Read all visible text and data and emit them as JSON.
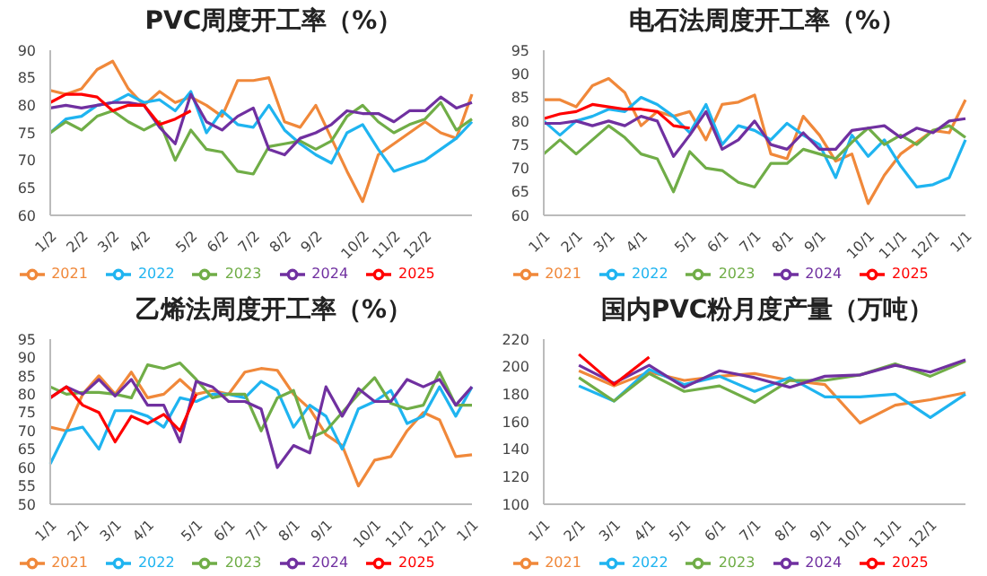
{
  "chart_data": [
    {
      "type": "line",
      "title": "PVC周度开工率（%）",
      "legend": "bottom",
      "categories": [
        "1/2",
        null,
        "2/2",
        null,
        "3/2",
        null,
        "4/2",
        null,
        null,
        "5/2",
        null,
        "6/2",
        null,
        "7/2",
        null,
        "8/2",
        null,
        "9/2",
        null,
        null,
        "10/2",
        null,
        "11/2",
        null,
        "12/2",
        null,
        null,
        null
      ],
      "ylim": [
        60,
        90
      ],
      "yticks": [
        60,
        65,
        70,
        75,
        80,
        85,
        90
      ],
      "series": [
        {
          "name": "2021",
          "color": "#f0883a",
          "values": [
            82.7,
            82,
            83,
            86.5,
            88,
            83,
            80,
            82.5,
            80.5,
            81.5,
            80,
            78,
            84.5,
            84.5,
            85,
            77,
            76,
            80,
            74,
            68,
            62.5,
            71,
            73,
            75,
            77,
            75,
            74,
            82
          ]
        },
        {
          "name": "2022",
          "color": "#1fb4f0",
          "values": [
            75,
            77.5,
            78,
            80,
            80.5,
            82,
            80.5,
            81,
            79,
            82.5,
            75,
            79,
            76.5,
            76,
            80,
            75.5,
            73,
            71,
            69.5,
            75,
            76.5,
            72,
            68,
            69,
            70,
            72,
            74,
            77
          ]
        },
        {
          "name": "2023",
          "color": "#70ad47",
          "values": [
            75,
            77,
            75.5,
            78,
            79,
            77,
            75.5,
            77,
            70,
            75.5,
            72,
            71.5,
            68,
            67.5,
            72.5,
            73,
            73.5,
            72,
            73.5,
            78,
            80,
            77,
            75,
            76.5,
            77.5,
            80.5,
            75.5,
            77.5
          ]
        },
        {
          "name": "2024",
          "color": "#7030a0",
          "values": [
            79.5,
            80,
            79.5,
            80,
            80.5,
            80.5,
            80,
            76,
            73,
            82,
            77,
            75.5,
            78,
            79.5,
            72,
            71,
            74,
            75,
            76.5,
            79,
            78.5,
            78.5,
            77,
            79,
            79,
            81.5,
            79.5,
            80.5
          ]
        },
        {
          "name": "2025",
          "color": "#ff0000",
          "values": [
            80.5,
            82,
            82,
            81.5,
            79,
            80,
            80,
            76.5,
            77.5,
            79,
            null,
            null,
            null,
            null,
            null,
            null,
            null,
            null,
            null,
            null,
            null,
            null,
            null,
            null,
            null,
            null,
            null,
            null
          ]
        }
      ]
    },
    {
      "type": "line",
      "title": "电石法周度开工率（%）",
      "legend": "bottom",
      "categories": [
        "1/1",
        null,
        "2/1",
        null,
        "3/1",
        null,
        "4/1",
        null,
        null,
        "5/1",
        null,
        "6/1",
        null,
        "7/1",
        null,
        "8/1",
        null,
        "9/1",
        null,
        null,
        "10/1",
        null,
        "11/1",
        null,
        "12/1",
        null,
        "1/1"
      ],
      "ylim": [
        60,
        95
      ],
      "yticks": [
        60,
        65,
        70,
        75,
        80,
        85,
        90,
        95
      ],
      "series": [
        {
          "name": "2021",
          "color": "#f0883a",
          "values": [
            84.5,
            84.5,
            83,
            87.5,
            89,
            86,
            79,
            82,
            81,
            82,
            76,
            83.5,
            84,
            85.5,
            73,
            72,
            81,
            77,
            71.5,
            73,
            62.5,
            68.5,
            73,
            75.5,
            78,
            77.5,
            84.5
          ]
        },
        {
          "name": "2022",
          "color": "#1fb4f0",
          "values": [
            80,
            77,
            80,
            81,
            82.5,
            82,
            85,
            83.5,
            81,
            77.5,
            83.5,
            75,
            79,
            78,
            76,
            79.5,
            77,
            75,
            68,
            77,
            72.5,
            76,
            70.5,
            66,
            66.5,
            68,
            76
          ]
        },
        {
          "name": "2023",
          "color": "#70ad47",
          "values": [
            73,
            76,
            73,
            76,
            79,
            76.5,
            73,
            72,
            65,
            73.5,
            70,
            69.5,
            67,
            66,
            71,
            71,
            74,
            73,
            72,
            75.5,
            78.5,
            75,
            77,
            75,
            78,
            79,
            76.5
          ]
        },
        {
          "name": "2024",
          "color": "#7030a0",
          "values": [
            79.5,
            79.5,
            80,
            79,
            80,
            79,
            81,
            80,
            72.5,
            77,
            82,
            74,
            76,
            80,
            75,
            74,
            77.5,
            74,
            74,
            78,
            78.5,
            79,
            76.5,
            78.5,
            77.5,
            80,
            80.5
          ]
        },
        {
          "name": "2025",
          "color": "#ff0000",
          "values": [
            80.5,
            81.5,
            82,
            83.5,
            83,
            82.5,
            82.5,
            82,
            79,
            78.5,
            null,
            null,
            null,
            null,
            null,
            null,
            null,
            null,
            null,
            null,
            null,
            null,
            null,
            null,
            null,
            null,
            null
          ]
        }
      ]
    },
    {
      "type": "line",
      "title": "乙烯法周度开工率（%）",
      "legend": "bottom",
      "categories": [
        "1/1",
        null,
        "2/1",
        null,
        "3/1",
        null,
        "4/1",
        null,
        null,
        "5/1",
        null,
        "6/1",
        null,
        "7/1",
        null,
        "8/1",
        null,
        "9/1",
        null,
        null,
        "10/1",
        null,
        "11/1",
        null,
        "12/1",
        null,
        "1/1"
      ],
      "ylim": [
        50,
        95
      ],
      "yticks": [
        50,
        55,
        60,
        65,
        70,
        75,
        80,
        85,
        90,
        95
      ],
      "series": [
        {
          "name": "2021",
          "color": "#f0883a",
          "values": [
            71,
            70,
            80,
            85,
            80,
            86,
            79,
            80,
            84,
            80,
            81,
            80,
            86,
            87,
            86.5,
            80,
            76,
            69,
            66,
            55,
            62,
            63,
            70,
            75,
            73,
            63,
            63.5
          ]
        },
        {
          "name": "2022",
          "color": "#1fb4f0",
          "values": [
            61,
            70,
            71,
            65,
            75.5,
            75.5,
            74,
            71,
            79,
            78,
            80,
            80,
            79,
            83.5,
            81,
            71,
            77,
            74,
            65,
            76,
            78,
            81,
            72,
            74,
            82,
            74,
            82
          ]
        },
        {
          "name": "2023",
          "color": "#70ad47",
          "values": [
            82,
            80,
            80.5,
            80.5,
            80,
            79,
            88,
            87,
            88.5,
            84,
            79,
            80,
            80,
            70,
            79,
            81,
            68,
            70,
            75,
            80,
            84.5,
            77.5,
            76,
            77,
            86,
            77,
            77
          ]
        },
        {
          "name": "2024",
          "color": "#7030a0",
          "values": [
            79,
            82,
            80,
            84,
            79.5,
            84,
            77,
            77,
            67,
            83.5,
            82,
            78,
            78,
            76,
            60,
            66,
            64,
            82,
            74,
            81.5,
            78,
            78,
            84,
            82,
            84,
            77,
            82
          ]
        },
        {
          "name": "2025",
          "color": "#ff0000",
          "values": [
            79,
            82,
            77,
            75,
            67,
            74,
            72,
            74.5,
            70,
            80,
            null,
            null,
            null,
            null,
            null,
            null,
            null,
            null,
            null,
            null,
            null,
            null,
            null,
            null,
            null,
            null,
            null
          ]
        }
      ]
    },
    {
      "type": "line",
      "title": "国内PVC粉月度产量（万吨）",
      "legend": "bottom",
      "categories": [
        "1/1",
        "2/1",
        "3/1",
        "4/1",
        "5/1",
        "6/1",
        "7/1",
        "8/1",
        "9/1",
        "10/1",
        "11/1",
        "12/1",
        null
      ],
      "ylim": [
        100,
        220
      ],
      "yticks": [
        100,
        120,
        140,
        160,
        180,
        200,
        220
      ],
      "series": [
        {
          "name": "2021",
          "color": "#f0883a",
          "values": [
            null,
            197,
            186,
            196,
            190,
            193,
            195,
            190,
            187,
            159,
            172,
            176,
            181
          ]
        },
        {
          "name": "2022",
          "color": "#1fb4f0",
          "values": [
            null,
            186,
            175,
            198,
            187,
            193,
            182,
            192,
            178,
            178,
            180,
            163,
            180
          ]
        },
        {
          "name": "2023",
          "color": "#70ad47",
          "values": [
            null,
            192,
            175,
            195,
            182,
            186,
            174,
            190,
            190,
            194,
            202,
            193,
            204
          ]
        },
        {
          "name": "2024",
          "color": "#7030a0",
          "values": [
            null,
            201,
            188,
            201,
            185,
            197,
            192,
            185,
            193,
            194,
            201,
            196,
            205
          ]
        },
        {
          "name": "2025",
          "color": "#ff0000",
          "values": [
            null,
            209,
            187,
            207,
            null,
            null,
            null,
            null,
            null,
            null,
            null,
            null,
            null
          ]
        }
      ]
    }
  ]
}
